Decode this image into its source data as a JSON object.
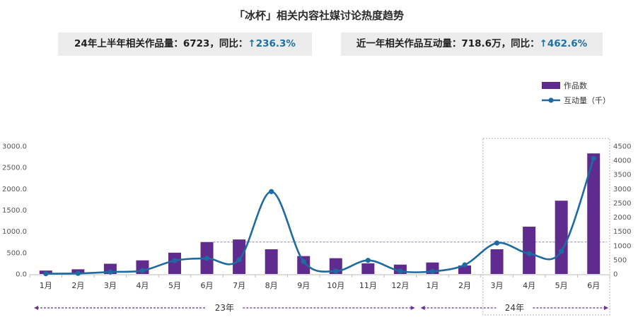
{
  "title": "「冰杯」相关内容社媒讨论热度趋势",
  "stats": [
    {
      "text": "24年上半年相关作品量：6723，同比：",
      "change": "↑236.3%"
    },
    {
      "text": "近一年相关作品互动量：718.6万，同比：",
      "change": "↑462.6%"
    }
  ],
  "colors": {
    "bar": "#5f2b8f",
    "line": "#1f6aa0",
    "change_text": "#1f6f9f",
    "stat_background": "#ececec",
    "group_arrow": "#6a3096",
    "reference_line": "#9184b5",
    "highlight_box": "#b0b0b0"
  },
  "chart_data": {
    "type": "bar",
    "categories": [
      "1月",
      "2月",
      "3月",
      "4月",
      "5月",
      "6月",
      "7月",
      "8月",
      "9月",
      "10月",
      "11月",
      "12月",
      "1月",
      "2月",
      "3月",
      "4月",
      "5月",
      "6月"
    ],
    "groups": [
      {
        "label": "23年",
        "category_index_range": [
          0,
          11
        ]
      },
      {
        "label": "24年",
        "category_index_range": [
          12,
          17
        ]
      }
    ],
    "series": [
      {
        "name": "作品数",
        "type": "bar",
        "axis": "left",
        "values": [
          80,
          110,
          240,
          320,
          500,
          750,
          810,
          580,
          420,
          370,
          250,
          220,
          270,
          200,
          580,
          1110,
          1720,
          2830
        ]
      },
      {
        "name": "互动量（千）",
        "type": "line",
        "smooth": true,
        "markers": true,
        "axis": "right",
        "values": [
          10,
          20,
          70,
          120,
          470,
          550,
          500,
          2900,
          440,
          100,
          480,
          100,
          90,
          320,
          1090,
          720,
          800,
          4070
        ]
      }
    ],
    "y_left": {
      "range": [
        0,
        3000
      ],
      "ticks": [
        "0.0",
        "500.0",
        "1000.0",
        "1500.0",
        "2000.0",
        "2500.0",
        "3000.0"
      ]
    },
    "y_right": {
      "range": [
        0,
        4500
      ],
      "ticks": [
        "0",
        "500",
        "1000",
        "1500",
        "2000",
        "2500",
        "3000",
        "3500",
        "4000",
        "4500"
      ]
    },
    "highlight": {
      "style": "dashed-box",
      "category_index_range": [
        14,
        17
      ]
    },
    "reference_line": {
      "style": "dashed",
      "axis": "left",
      "value": 750,
      "from_category_index": 5
    },
    "grid": false,
    "legend_position": "top-right"
  }
}
